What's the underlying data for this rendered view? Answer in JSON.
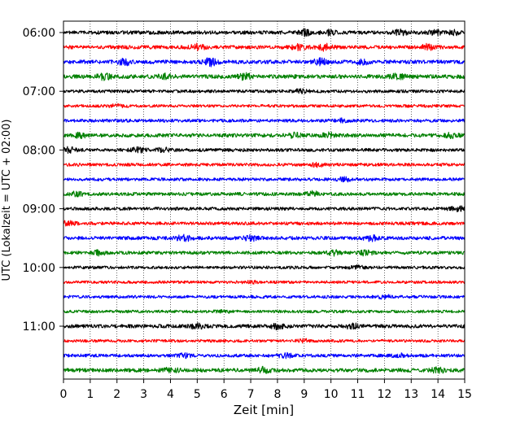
{
  "chart_data": {
    "type": "line",
    "title": "",
    "xlabel": "Zeit  [min]",
    "ylabel": "UTC (Lokalzeit = UTC + 02:00)",
    "xlim": [
      0,
      15
    ],
    "x_ticks": [
      "0",
      "1",
      "2",
      "3",
      "4",
      "5",
      "6",
      "7",
      "8",
      "9",
      "10",
      "11",
      "12",
      "13",
      "14",
      "15"
    ],
    "y_tick_labels": [
      "06:00",
      "07:00",
      "08:00",
      "09:00",
      "10:00",
      "11:00"
    ],
    "grid": "vertical dotted lines at each minute",
    "legend": "none",
    "trace_interval_minutes": 15,
    "trace_start": "06:00",
    "trace_count": 24,
    "trace_color_cycle": [
      "#000000",
      "#ff0000",
      "#0000ff",
      "#008000"
    ],
    "traces": [
      {
        "start": "06:00",
        "color": "#000000",
        "amplitude": 0.18,
        "bursts": [
          [
            9.0,
            0.55
          ],
          [
            9.9,
            0.45
          ],
          [
            12.6,
            0.5
          ],
          [
            13.9,
            0.4
          ],
          [
            14.6,
            0.35
          ]
        ]
      },
      {
        "start": "06:15",
        "color": "#ff0000",
        "amplitude": 0.18,
        "bursts": [
          [
            5.0,
            0.55
          ],
          [
            8.8,
            0.45
          ],
          [
            9.8,
            0.6
          ],
          [
            13.6,
            0.55
          ]
        ]
      },
      {
        "start": "06:30",
        "color": "#0000ff",
        "amplitude": 0.2,
        "bursts": [
          [
            2.3,
            0.5
          ],
          [
            5.5,
            0.7
          ],
          [
            9.6,
            0.55
          ],
          [
            11.2,
            0.4
          ]
        ]
      },
      {
        "start": "06:45",
        "color": "#008000",
        "amplitude": 0.22,
        "bursts": [
          [
            1.5,
            0.5
          ],
          [
            3.8,
            0.4
          ],
          [
            6.8,
            0.5
          ],
          [
            12.5,
            0.45
          ]
        ]
      },
      {
        "start": "07:00",
        "color": "#000000",
        "amplitude": 0.12,
        "bursts": [
          [
            8.9,
            0.35
          ]
        ]
      },
      {
        "start": "07:15",
        "color": "#ff0000",
        "amplitude": 0.1,
        "bursts": [
          [
            2.0,
            0.25
          ]
        ]
      },
      {
        "start": "07:30",
        "color": "#0000ff",
        "amplitude": 0.13,
        "bursts": [
          [
            10.5,
            0.35
          ]
        ]
      },
      {
        "start": "07:45",
        "color": "#008000",
        "amplitude": 0.18,
        "bursts": [
          [
            0.6,
            0.4
          ],
          [
            8.6,
            0.45
          ],
          [
            9.9,
            0.45
          ],
          [
            14.5,
            0.4
          ]
        ]
      },
      {
        "start": "08:00",
        "color": "#000000",
        "amplitude": 0.14,
        "bursts": [
          [
            0.2,
            0.5
          ],
          [
            2.8,
            0.45
          ],
          [
            3.7,
            0.4
          ]
        ]
      },
      {
        "start": "08:15",
        "color": "#ff0000",
        "amplitude": 0.12,
        "bursts": [
          [
            9.5,
            0.3
          ]
        ]
      },
      {
        "start": "08:30",
        "color": "#0000ff",
        "amplitude": 0.12,
        "bursts": [
          [
            10.5,
            0.35
          ]
        ]
      },
      {
        "start": "08:45",
        "color": "#008000",
        "amplitude": 0.15,
        "bursts": [
          [
            0.5,
            0.35
          ],
          [
            9.3,
            0.45
          ]
        ]
      },
      {
        "start": "09:00",
        "color": "#000000",
        "amplitude": 0.13,
        "bursts": [
          [
            14.7,
            0.55
          ]
        ]
      },
      {
        "start": "09:15",
        "color": "#ff0000",
        "amplitude": 0.13,
        "bursts": [
          [
            0.2,
            0.45
          ]
        ]
      },
      {
        "start": "09:30",
        "color": "#0000ff",
        "amplitude": 0.17,
        "bursts": [
          [
            4.5,
            0.6
          ],
          [
            7.0,
            0.45
          ],
          [
            11.5,
            0.45
          ]
        ]
      },
      {
        "start": "09:45",
        "color": "#008000",
        "amplitude": 0.15,
        "bursts": [
          [
            1.3,
            0.4
          ],
          [
            10.1,
            0.5
          ],
          [
            11.3,
            0.45
          ]
        ]
      },
      {
        "start": "10:00",
        "color": "#000000",
        "amplitude": 0.11,
        "bursts": [
          [
            11.0,
            0.3
          ]
        ]
      },
      {
        "start": "10:15",
        "color": "#ff0000",
        "amplitude": 0.1,
        "bursts": [
          [
            7.0,
            0.25
          ]
        ]
      },
      {
        "start": "10:30",
        "color": "#0000ff",
        "amplitude": 0.11,
        "bursts": [
          [
            12.0,
            0.3
          ]
        ]
      },
      {
        "start": "10:45",
        "color": "#008000",
        "amplitude": 0.1,
        "bursts": [
          [
            6.0,
            0.25
          ]
        ]
      },
      {
        "start": "11:00",
        "color": "#000000",
        "amplitude": 0.18,
        "bursts": [
          [
            5.0,
            0.45
          ],
          [
            8.0,
            0.5
          ],
          [
            10.8,
            0.45
          ]
        ]
      },
      {
        "start": "11:15",
        "color": "#ff0000",
        "amplitude": 0.1,
        "bursts": [
          [
            9.0,
            0.25
          ]
        ]
      },
      {
        "start": "11:30",
        "color": "#0000ff",
        "amplitude": 0.13,
        "bursts": [
          [
            4.5,
            0.35
          ],
          [
            8.3,
            0.4
          ],
          [
            12.5,
            0.35
          ]
        ]
      },
      {
        "start": "11:45",
        "color": "#008000",
        "amplitude": 0.2,
        "bursts": [
          [
            4.0,
            0.45
          ],
          [
            7.5,
            0.5
          ],
          [
            14.0,
            0.45
          ]
        ]
      }
    ]
  }
}
